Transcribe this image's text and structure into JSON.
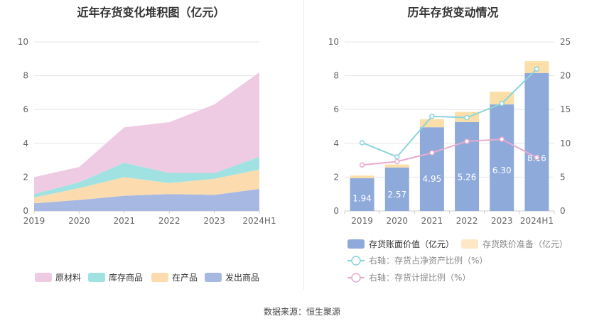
{
  "source": "数据来源：恒生聚源",
  "chart_data": [
    {
      "type": "area",
      "stacked": true,
      "title": "近年存货变化堆积图（亿元）",
      "categories": [
        "2019",
        "2020",
        "2021",
        "2022",
        "2023",
        "2024H1"
      ],
      "ylim": [
        0,
        10
      ],
      "yticks": [
        0,
        2,
        4,
        6,
        8,
        10
      ],
      "legend_position": "bottom",
      "series": [
        {
          "name": "发出商品",
          "color": "#a7b9e2",
          "values": [
            0.45,
            0.65,
            0.9,
            1.0,
            0.95,
            1.3
          ]
        },
        {
          "name": "在产品",
          "color": "#fcdcae",
          "values": [
            0.35,
            0.7,
            1.1,
            0.65,
            0.95,
            1.15
          ]
        },
        {
          "name": "库存商品",
          "color": "#a0e2e2",
          "values": [
            0.2,
            0.35,
            0.85,
            0.6,
            0.35,
            0.75
          ]
        },
        {
          "name": "原材料",
          "color": "#efcbe3",
          "values": [
            1.0,
            0.9,
            2.1,
            3.0,
            4.05,
            5.0
          ]
        }
      ]
    },
    {
      "type": "bar",
      "stacked": true,
      "title": "历年存货变动情况",
      "categories": [
        "2019",
        "2020",
        "2021",
        "2022",
        "2023",
        "2024H1"
      ],
      "ylim": [
        0,
        10
      ],
      "yticks": [
        0,
        2,
        4,
        6,
        8,
        10
      ],
      "ylim_right": [
        0,
        25
      ],
      "yticks_right": [
        0,
        5,
        10,
        15,
        20,
        25
      ],
      "legend_position": "bottom",
      "series": [
        {
          "name": "存货账面价值（亿元）",
          "color": "#8eaadb",
          "axis": "left",
          "values": [
            1.94,
            2.57,
            4.95,
            5.26,
            6.3,
            8.16
          ],
          "labels": [
            "1.94",
            "2.57",
            "4.95",
            "5.26",
            "6.30",
            "8.16"
          ]
        },
        {
          "name": "存货跌价准备（亿元）",
          "color": "#fcdfa8",
          "axis": "left",
          "values": [
            0.15,
            0.18,
            0.48,
            0.6,
            0.75,
            0.7
          ]
        }
      ],
      "lines": [
        {
          "name": "右轴：存货占净资产比例（%）",
          "color": "#8ad4dc",
          "axis": "right",
          "values": [
            10.1,
            8.0,
            14.0,
            13.8,
            15.9,
            21.0
          ]
        },
        {
          "name": "右轴：存货计提比例（%）",
          "color": "#e7abcf",
          "axis": "right",
          "values": [
            6.8,
            7.3,
            8.6,
            10.3,
            10.6,
            7.9
          ]
        }
      ]
    }
  ]
}
